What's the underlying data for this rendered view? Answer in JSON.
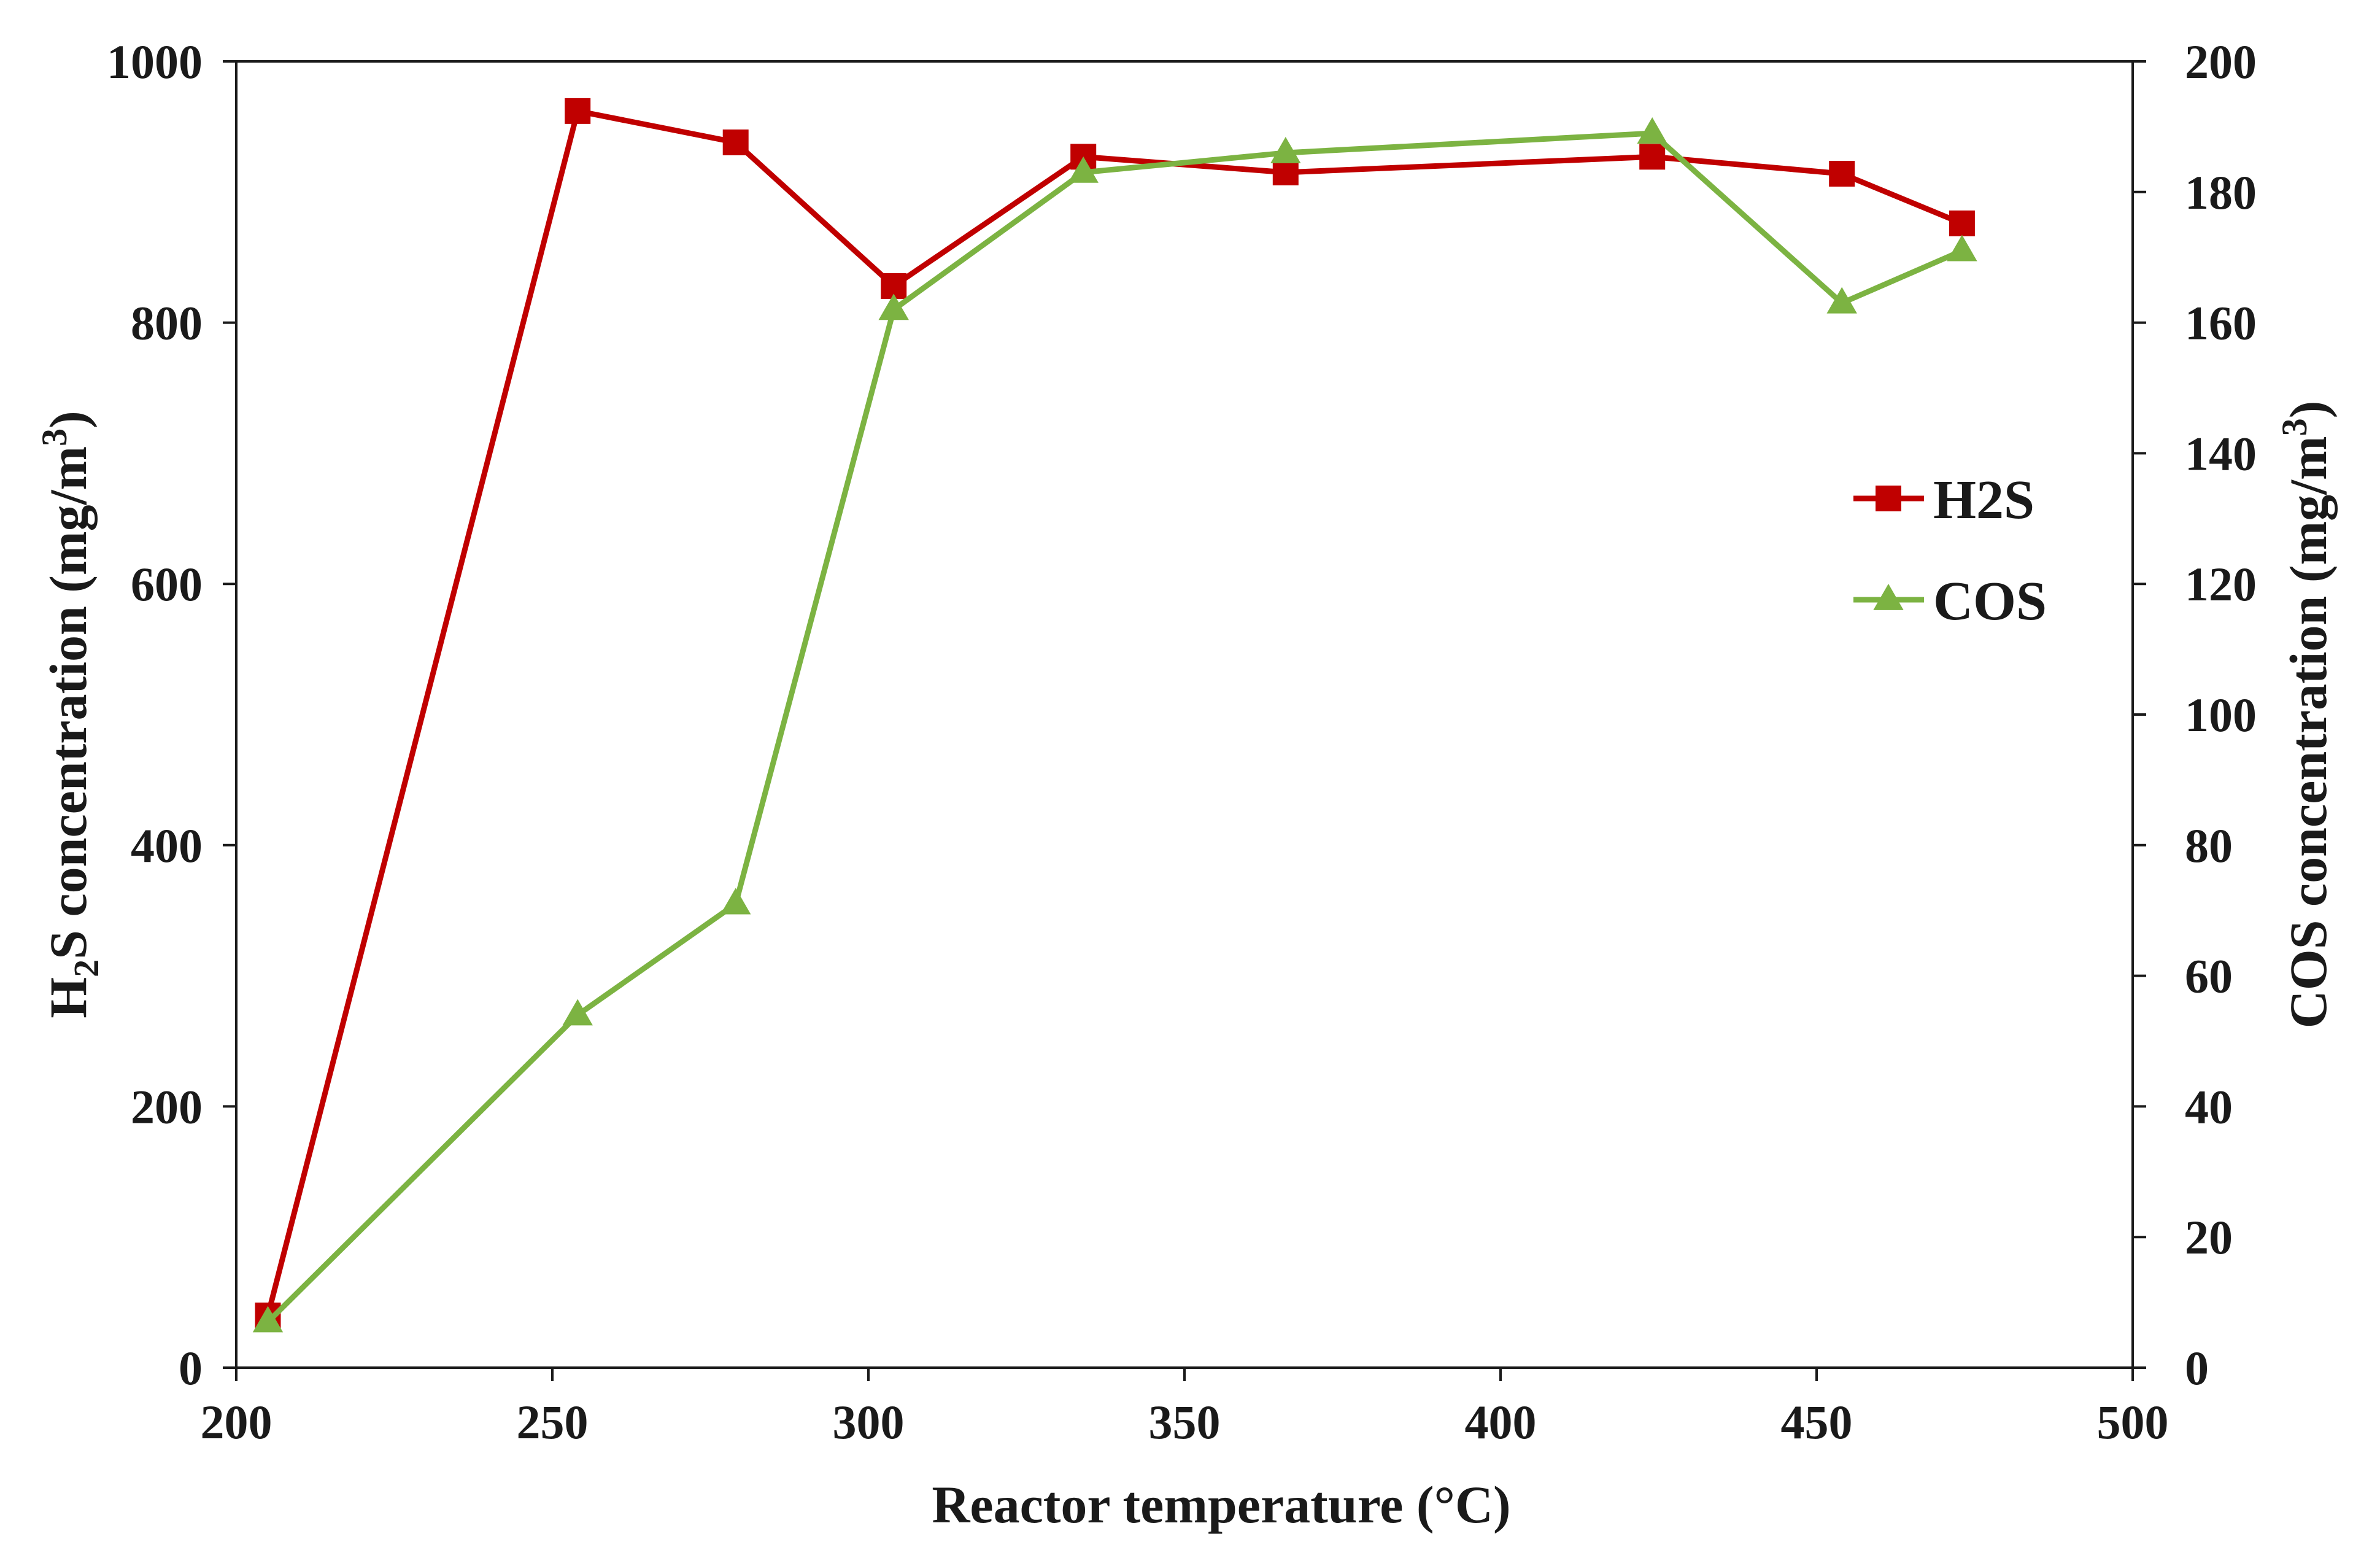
{
  "chart_data": {
    "type": "line",
    "xlabel": "Reactor temperature (°C)",
    "ylabel": {
      "prefix": "H",
      "sub": "2",
      "main": "S concentration  (mg/m",
      "sup": "3",
      "suffix": ")"
    },
    "y2label": {
      "main": "COS concentration  (mg/m",
      "sup": "3",
      "suffix": ")"
    },
    "xlim": [
      200,
      500
    ],
    "ylim": [
      0,
      1000
    ],
    "y2lim": [
      0,
      200
    ],
    "x_ticks": [
      200,
      250,
      300,
      350,
      400,
      450,
      500
    ],
    "y_ticks": [
      0,
      200,
      400,
      600,
      800,
      1000
    ],
    "y2_ticks": [
      0,
      20,
      40,
      60,
      80,
      100,
      120,
      140,
      160,
      180,
      200
    ],
    "grid": false,
    "legend_position": "right",
    "series": [
      {
        "name": "H2S",
        "axis": "left",
        "marker": "square",
        "color": "#c00000",
        "x": [
          205,
          254,
          279,
          304,
          334,
          366,
          424,
          454,
          473
        ],
        "y": [
          40,
          962,
          938,
          828,
          927,
          915,
          927,
          914,
          876
        ]
      },
      {
        "name": "COS",
        "axis": "right",
        "marker": "triangle",
        "color": "#7cb342",
        "x": [
          205,
          254,
          279,
          304,
          334,
          366,
          424,
          454,
          473
        ],
        "y": [
          7,
          54,
          71,
          162,
          183,
          186,
          189,
          163,
          171
        ]
      }
    ]
  }
}
